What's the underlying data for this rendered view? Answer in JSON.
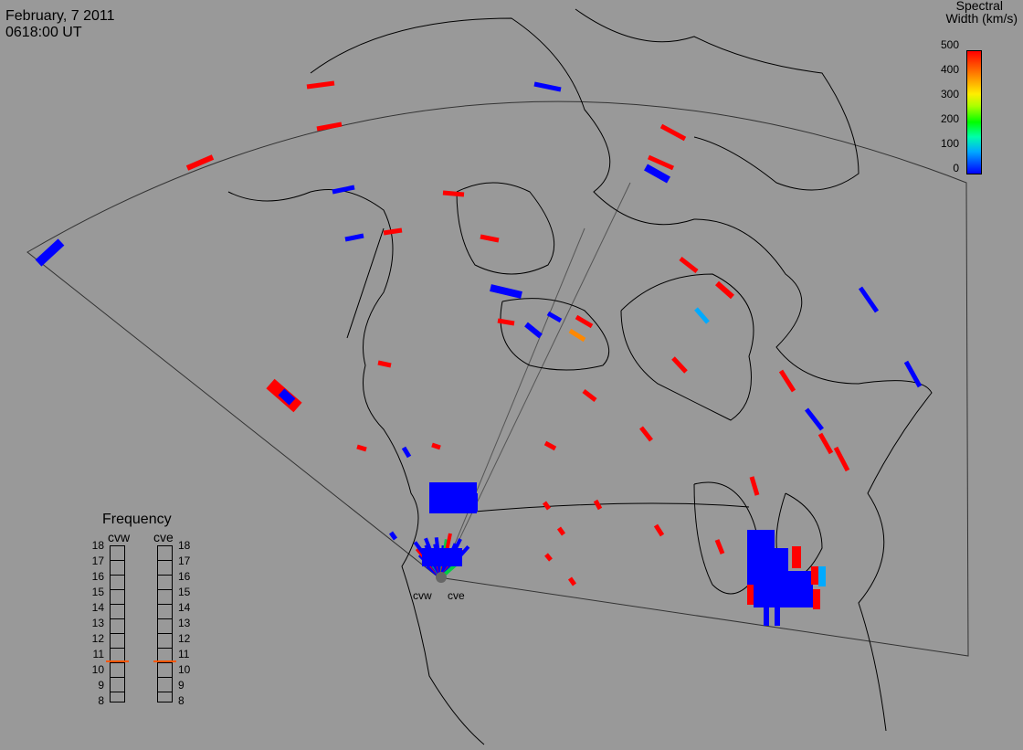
{
  "header": {
    "date": "February, 7 2011",
    "time": "0618:00 UT"
  },
  "colorbar": {
    "title_line1": "Spectral",
    "title_line2": "Width (km/s)",
    "ticks": [
      "500",
      "400",
      "300",
      "200",
      "100",
      "0"
    ]
  },
  "frequency": {
    "title": "Frequency",
    "radars": [
      {
        "name": "cvw",
        "value": 10.6
      },
      {
        "name": "cve",
        "value": 10.6
      }
    ],
    "ticks": [
      "18",
      "17",
      "16",
      "15",
      "14",
      "13",
      "12",
      "11",
      "10",
      "9",
      "8"
    ]
  },
  "radar_labels": {
    "west": "cvw",
    "east": "cve"
  },
  "colors": {
    "background": "#999999",
    "low": "#0000ff",
    "high": "#ff0000",
    "mid": "#ff8800",
    "cyan": "#00aaff"
  }
}
